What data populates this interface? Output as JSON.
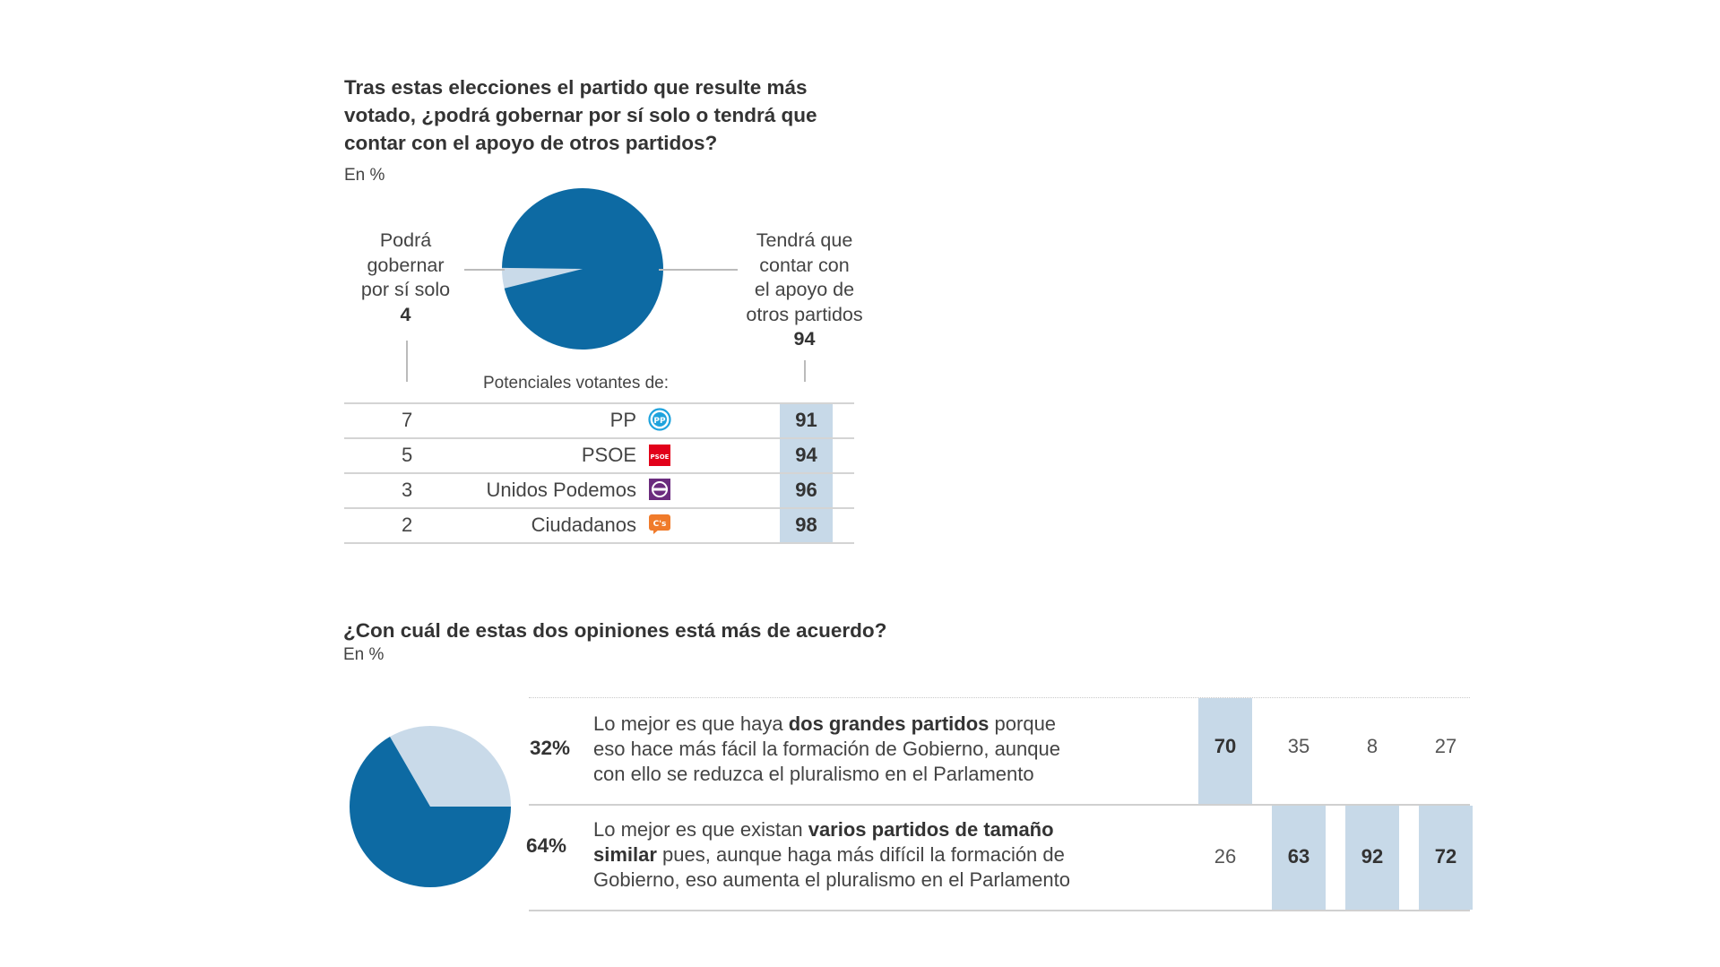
{
  "chart_data": [
    {
      "type": "pie",
      "title": "Tras estas elecciones el partido que resulte más votado, ¿podrá gobernar por sí solo o tendrá que contar con el apoyo de otros partidos?",
      "unit": "En %",
      "slices": [
        {
          "label_lines": [
            "Podrá",
            "gobernar",
            "por sí solo"
          ],
          "value": 4,
          "color": "#c9dae9"
        },
        {
          "label_lines": [
            "Tendrá que",
            "contar con",
            "el apoyo de",
            "otros partidos"
          ],
          "value": 94,
          "color": "#0d6aa3"
        }
      ],
      "table": {
        "header": "Potenciales votantes de:",
        "rows": [
          {
            "party": "PP",
            "logo": "pp-logo",
            "solo": "7",
            "apoyo": "91"
          },
          {
            "party": "PSOE",
            "logo": "psoe-logo",
            "solo": "5",
            "apoyo": "94"
          },
          {
            "party": "Unidos Podemos",
            "logo": "unidos-podemos-logo",
            "solo": "3",
            "apoyo": "96"
          },
          {
            "party": "Ciudadanos",
            "logo": "ciudadanos-logo",
            "solo": "2",
            "apoyo": "98"
          }
        ]
      }
    },
    {
      "type": "pie",
      "title": "¿Con cuál de estas dos opiniones está más de acuerdo?",
      "unit": "En %",
      "slices": [
        {
          "value": 32,
          "color": "#c9dae9"
        },
        {
          "value": 64,
          "color": "#0d6aa3"
        }
      ],
      "opinions": [
        {
          "pct": "32%",
          "lines": [
            {
              "pre": "Lo mejor es que haya ",
              "bold": "dos grandes partidos",
              "post": " porque"
            },
            {
              "pre": "eso hace más fácil la formación de Gobierno, aunque",
              "bold": "",
              "post": ""
            },
            {
              "pre": "con ello se reduzca el pluralismo en el Parlamento",
              "bold": "",
              "post": ""
            }
          ],
          "values": [
            "70",
            "35",
            "8",
            "27"
          ],
          "highlight": [
            true,
            false,
            false,
            false
          ]
        },
        {
          "pct": "64%",
          "lines": [
            {
              "pre": "Lo mejor es que existan ",
              "bold": "varios partidos de tamaño",
              "post": ""
            },
            {
              "pre": "",
              "bold": "similar",
              "post": " pues, aunque haga más difícil la formación de"
            },
            {
              "pre": "Gobierno, eso aumenta el pluralismo en el Parlamento",
              "bold": "",
              "post": ""
            }
          ],
          "values": [
            "26",
            "63",
            "92",
            "72"
          ],
          "highlight": [
            false,
            true,
            true,
            true
          ]
        }
      ]
    }
  ],
  "colors": {
    "dark": "#0d6aa3",
    "light": "#c9dae9",
    "highlight": "#c7d9e8"
  }
}
